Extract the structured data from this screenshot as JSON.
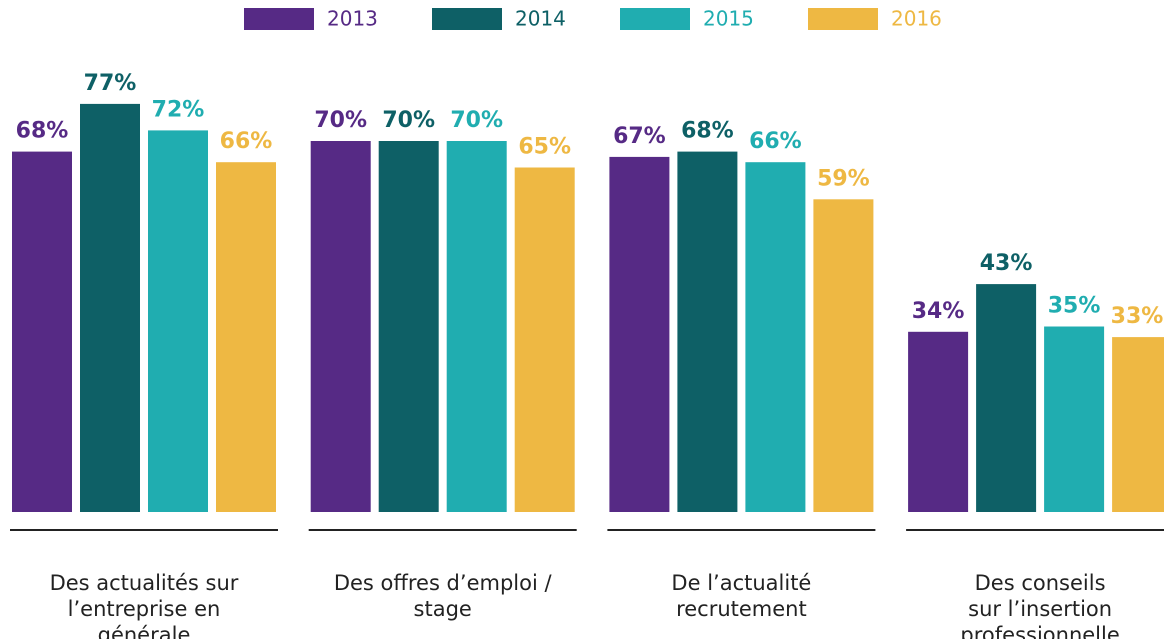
{
  "chart_data": {
    "type": "bar",
    "categories": [
      [
        "Des actualités sur",
        "l’entreprise en",
        "générale"
      ],
      [
        "Des offres d’emploi /",
        "stage"
      ],
      [
        "De l’actualité",
        "recrutement"
      ],
      [
        "Des conseils",
        "sur l’insertion",
        "professionnelle"
      ]
    ],
    "series": [
      {
        "name": "2013",
        "color": "#562a85",
        "values": [
          68,
          70,
          67,
          34
        ],
        "value_labels": [
          "68%",
          "70%",
          "67%",
          "34%"
        ]
      },
      {
        "name": "2014",
        "color": "#0e6066",
        "values": [
          77,
          70,
          68,
          43
        ],
        "value_labels": [
          "77%",
          "70%",
          "68%",
          "43%"
        ]
      },
      {
        "name": "2015",
        "color": "#20adb0",
        "values": [
          72,
          70,
          66,
          35
        ],
        "value_labels": [
          "72%",
          "70%",
          "66%",
          "35%"
        ]
      },
      {
        "name": "2016",
        "color": "#eeb843",
        "values": [
          66,
          65,
          59,
          33
        ],
        "value_labels": [
          "66%",
          "65%",
          "59%",
          "33%"
        ]
      }
    ],
    "legend": "top"
  }
}
